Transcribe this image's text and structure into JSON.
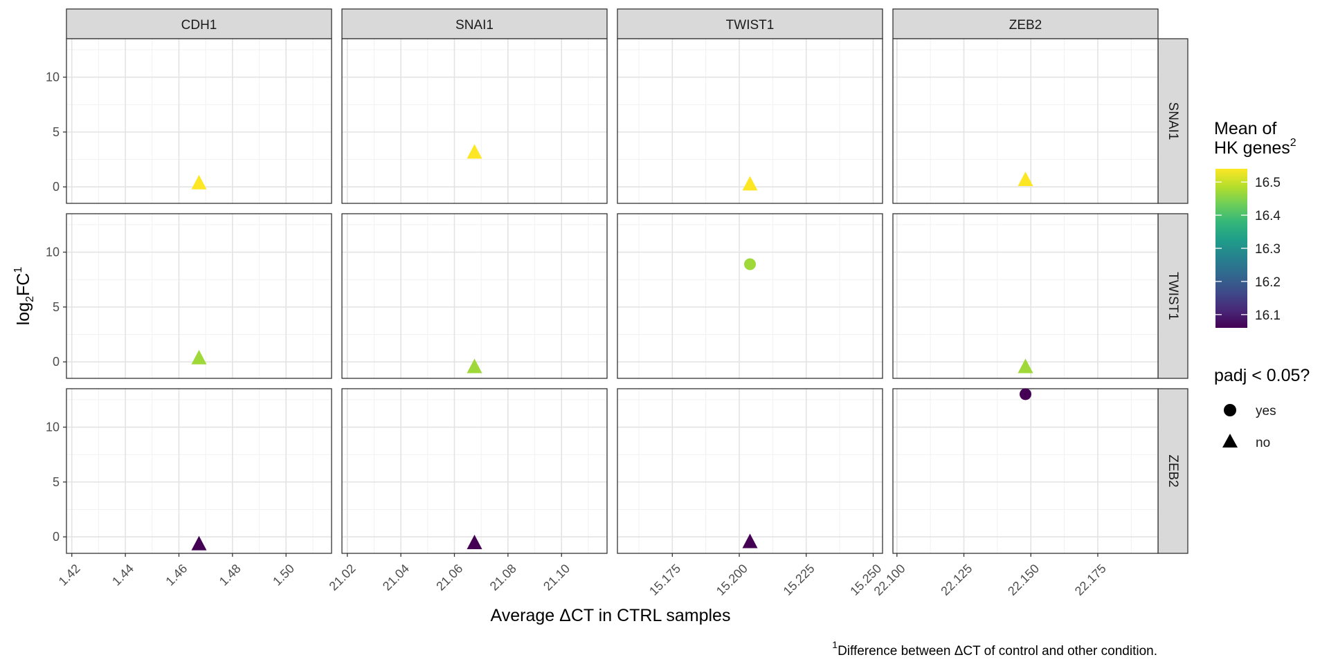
{
  "chart_data": {
    "type": "scatter",
    "facet_columns": [
      "CDH1",
      "SNAI1",
      "TWIST1",
      "ZEB2"
    ],
    "facet_rows": [
      "SNAI1",
      "TWIST1",
      "ZEB2"
    ],
    "xlabel": "Average ΔCT in CTRL samples",
    "ylabel": {
      "base": "log",
      "sub": "2",
      "main": "FC",
      "sup": "1"
    },
    "ylim": [
      -1.5,
      13.5
    ],
    "yticks": [
      0,
      5,
      10
    ],
    "grid": true,
    "column_axes": [
      {
        "xlim": [
          1.418,
          1.517
        ],
        "ticks": [
          1.42,
          1.44,
          1.46,
          1.48,
          1.5
        ],
        "tick_labels": [
          "1.42",
          "1.44",
          "1.46",
          "1.48",
          "1.50"
        ]
      },
      {
        "xlim": [
          21.018,
          21.117
        ],
        "ticks": [
          21.02,
          21.04,
          21.06,
          21.08,
          21.1
        ],
        "tick_labels": [
          "21.02",
          "21.04",
          "21.06",
          "21.08",
          "21.10"
        ]
      },
      {
        "xlim": [
          15.1545,
          15.2535
        ],
        "ticks": [
          15.175,
          15.2,
          15.225,
          15.25
        ],
        "tick_labels": [
          "15.175",
          "15.200",
          "15.225",
          "15.250"
        ]
      },
      {
        "xlim": [
          22.0985,
          22.1975
        ],
        "ticks": [
          22.1,
          22.125,
          22.15,
          22.175
        ],
        "tick_labels": [
          "22.100",
          "22.125",
          "22.150",
          "22.175"
        ]
      }
    ],
    "points": [
      {
        "row": 0,
        "col": 0,
        "x": 1.4675,
        "y": 0.4,
        "color_value": 16.54,
        "padj_significant": false
      },
      {
        "row": 0,
        "col": 1,
        "x": 21.0675,
        "y": 3.2,
        "color_value": 16.54,
        "padj_significant": false
      },
      {
        "row": 0,
        "col": 2,
        "x": 15.204,
        "y": 0.3,
        "color_value": 16.54,
        "padj_significant": false
      },
      {
        "row": 0,
        "col": 3,
        "x": 22.148,
        "y": 0.7,
        "color_value": 16.54,
        "padj_significant": false
      },
      {
        "row": 1,
        "col": 0,
        "x": 1.4675,
        "y": 0.4,
        "color_value": 16.47,
        "padj_significant": false
      },
      {
        "row": 1,
        "col": 1,
        "x": 21.0675,
        "y": -0.4,
        "color_value": 16.47,
        "padj_significant": false
      },
      {
        "row": 1,
        "col": 2,
        "x": 15.204,
        "y": 8.9,
        "color_value": 16.47,
        "padj_significant": true
      },
      {
        "row": 1,
        "col": 3,
        "x": 22.148,
        "y": -0.4,
        "color_value": 16.47,
        "padj_significant": false
      },
      {
        "row": 2,
        "col": 0,
        "x": 1.4675,
        "y": -0.6,
        "color_value": 16.06,
        "padj_significant": false
      },
      {
        "row": 2,
        "col": 1,
        "x": 21.0675,
        "y": -0.5,
        "color_value": 16.06,
        "padj_significant": false
      },
      {
        "row": 2,
        "col": 2,
        "x": 15.204,
        "y": -0.4,
        "color_value": 16.06,
        "padj_significant": false
      },
      {
        "row": 2,
        "col": 3,
        "x": 22.148,
        "y": 13.0,
        "color_value": 16.06,
        "padj_significant": true
      }
    ],
    "color_legend": {
      "title_line1": "Mean of",
      "title_line2": "HK genes",
      "title_sup": "2",
      "min": 16.06,
      "max": 16.54,
      "ticks": [
        16.1,
        16.2,
        16.3,
        16.4,
        16.5
      ],
      "tick_labels": [
        "16.1",
        "16.2",
        "16.3",
        "16.4",
        "16.5"
      ],
      "palette": [
        "#440154",
        "#482878",
        "#3e4a89",
        "#31688e",
        "#26828e",
        "#1f9e89",
        "#35b779",
        "#6ece58",
        "#b5de2b",
        "#fde725"
      ]
    },
    "shape_legend": {
      "title": "padj < 0.05?",
      "entries": [
        {
          "label": "yes",
          "shape": "circle"
        },
        {
          "label": "no",
          "shape": "triangle"
        }
      ]
    },
    "caption": {
      "sup": "1",
      "text": "Difference between ΔCT of control and other condition."
    }
  }
}
